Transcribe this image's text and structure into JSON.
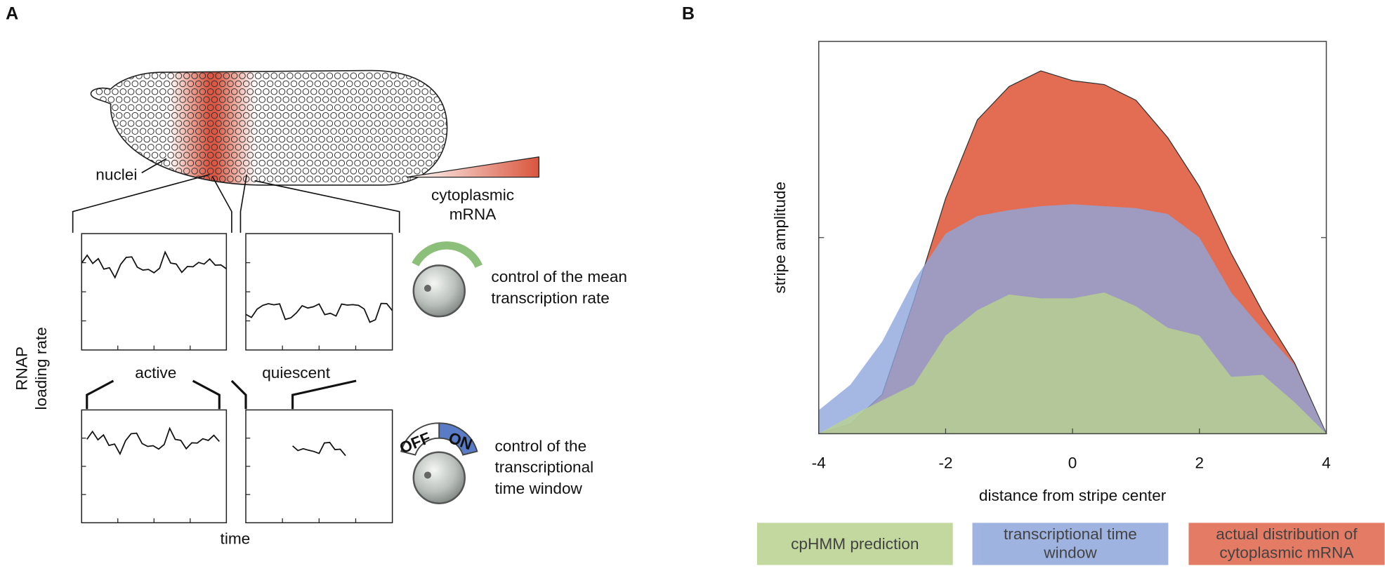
{
  "panel_a": {
    "label": "A",
    "nuclei": "nuclei",
    "cytoplasmic_mrna": [
      "cytoplasmic",
      "mRNA"
    ],
    "mean_control": [
      "control of the mean",
      "transcription rate"
    ],
    "active": "active",
    "quiescent": "quiescent",
    "y_label": [
      "RNAP",
      "loading rate"
    ],
    "window_control": [
      "control of the",
      "transcriptional",
      "time window"
    ],
    "off": "OFF",
    "on": "ON",
    "x_label": "time"
  },
  "chart_data": {
    "type": "area",
    "label": "B",
    "xlabel": "distance from stripe center",
    "ylabel": "stripe amplitude",
    "x": [
      -4,
      -3.5,
      -3,
      -2.5,
      -2,
      -1.5,
      -1,
      -0.5,
      0,
      0.5,
      1,
      1.5,
      2,
      2.5,
      3,
      3.5,
      4
    ],
    "xlim": [
      -4,
      4
    ],
    "xticks": [
      -4,
      -2,
      0,
      2,
      4
    ],
    "ylim": [
      0,
      2
    ],
    "yticks": [
      1
    ],
    "series": [
      {
        "name": "actual distribution of cytoplasmic mRNA",
        "color": "#e0654a",
        "values": [
          0,
          0.05,
          0.2,
          0.68,
          1.2,
          1.6,
          1.77,
          1.85,
          1.8,
          1.78,
          1.7,
          1.51,
          1.26,
          0.92,
          0.62,
          0.36,
          0
        ]
      },
      {
        "name": "transcriptional time window",
        "color": "#8fa6dc",
        "values": [
          0.12,
          0.25,
          0.47,
          0.78,
          1.02,
          1.11,
          1.14,
          1.16,
          1.17,
          1.16,
          1.15,
          1.12,
          1.0,
          0.72,
          0.53,
          0.35,
          0
        ]
      },
      {
        "name": "cpHMM prediction",
        "color": "#b9d28e",
        "values": [
          0,
          0.09,
          0.17,
          0.25,
          0.5,
          0.63,
          0.71,
          0.69,
          0.69,
          0.72,
          0.65,
          0.54,
          0.5,
          0.29,
          0.3,
          0.16,
          0
        ]
      }
    ],
    "legend_order": [
      2,
      1,
      0
    ]
  }
}
